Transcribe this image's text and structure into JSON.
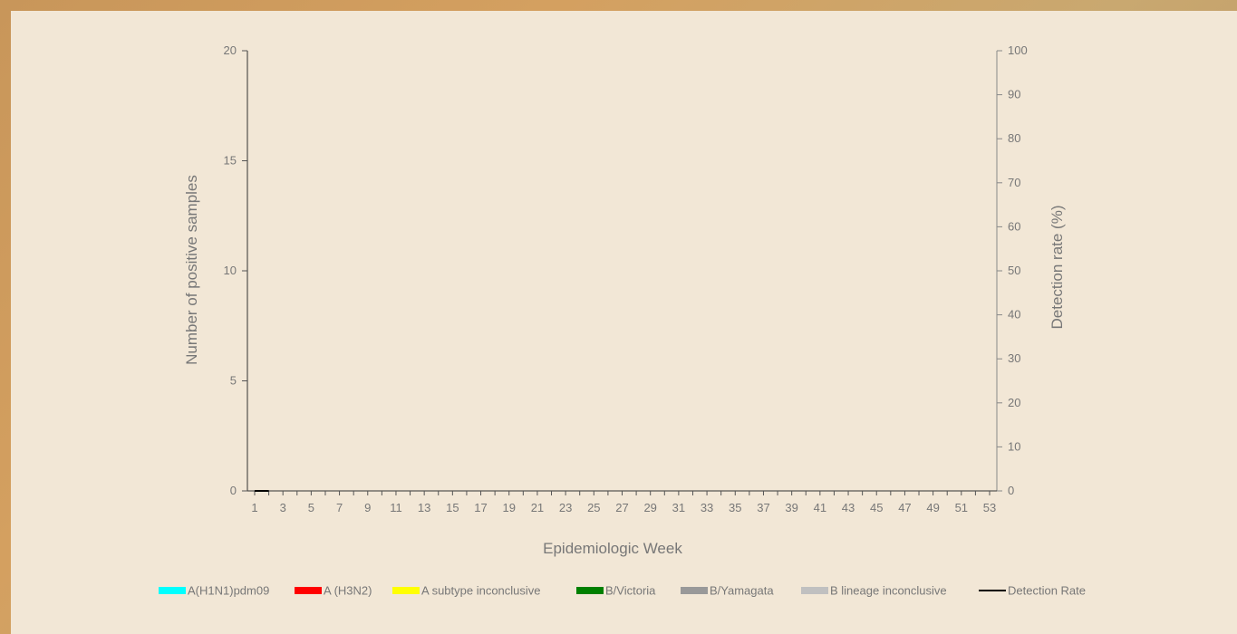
{
  "chart_data": {
    "type": "bar",
    "xlabel": "Epidemiologic Week",
    "ylabel": "Number of positive samples",
    "ylabel_right": "Detection rate (%)",
    "x_ticks": [
      "1",
      "3",
      "5",
      "7",
      "9",
      "11",
      "13",
      "15",
      "17",
      "19",
      "21",
      "23",
      "25",
      "27",
      "29",
      "31",
      "33",
      "35",
      "37",
      "39",
      "41",
      "43",
      "45",
      "47",
      "49",
      "51",
      "53"
    ],
    "weeks": [
      1,
      53
    ],
    "ylim": [
      0,
      20
    ],
    "y_ticks": [
      0,
      5,
      10,
      15,
      20
    ],
    "ylim_right": [
      0,
      100
    ],
    "y_ticks_right": [
      0,
      10,
      20,
      30,
      40,
      50,
      60,
      70,
      80,
      90,
      100
    ],
    "stacked": true,
    "series": [
      {
        "name": "A(H1N1)pdm09",
        "color": "#00ffff",
        "values": []
      },
      {
        "name": "A (H3N2)",
        "color": "#ff0000",
        "values": []
      },
      {
        "name": "A subtype inconclusive",
        "color": "#ffff00",
        "values": []
      },
      {
        "name": "B/Victoria",
        "color": "#008000",
        "values": []
      },
      {
        "name": "B/Yamagata",
        "color": "#999999",
        "values": []
      },
      {
        "name": "B lineage inconclusive",
        "color": "#c0c0c0",
        "values": []
      }
    ],
    "line_series": {
      "name": "Detection Rate",
      "color": "#000000",
      "axis": "right",
      "x": [
        1,
        2
      ],
      "values": [
        0,
        0
      ]
    },
    "legend_position": "bottom",
    "grid": false
  }
}
